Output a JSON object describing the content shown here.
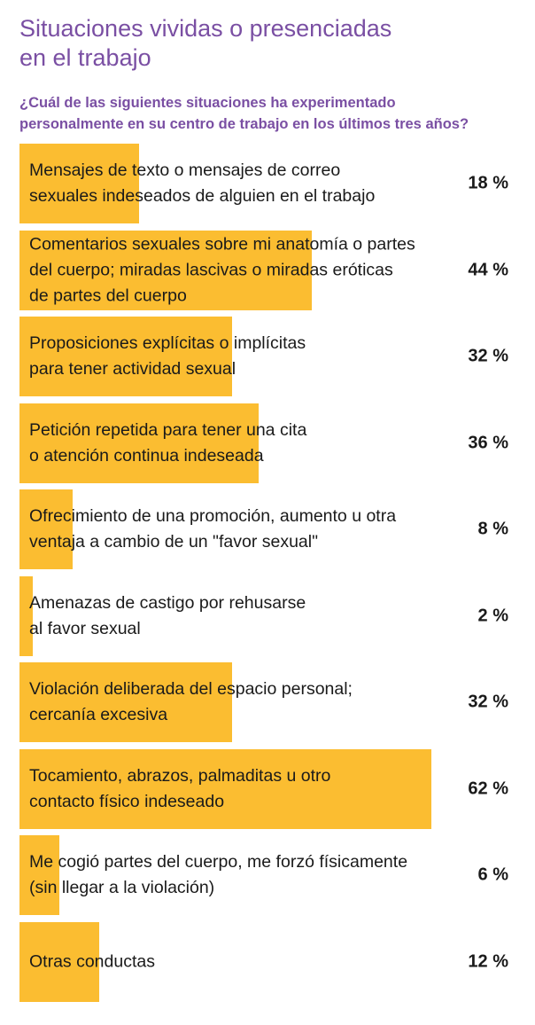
{
  "header": {
    "title": "Situaciones vividas o presenciadas\nen el trabajo",
    "subtitle": "¿Cuál de las siguientes situaciones ha experimentado\npersonalmente en su centro de trabajo en los últimos tres años?"
  },
  "colors": {
    "bar": "#fbbd31",
    "title": "#7a4fa3",
    "text": "#1a1a1a"
  },
  "chart_data": {
    "type": "bar",
    "orientation": "horizontal",
    "title": "Situaciones vividas o presenciadas en el trabajo",
    "subtitle": "¿Cuál de las siguientes situaciones ha experimentado personalmente en su centro de trabajo en los últimos tres años?",
    "unit": "%",
    "xlim": [
      0,
      100
    ],
    "categories": [
      "Mensajes de texto o mensajes de correo\nsexuales indeseados de alguien en el trabajo",
      "Comentarios sexuales sobre mi anatomía o partes\ndel cuerpo; miradas lascivas o miradas eróticas\nde partes del cuerpo",
      "Proposiciones explícitas o implícitas\npara tener actividad sexual",
      "Petición repetida para tener una cita\no atención continua indeseada",
      "Ofrecimiento de una promoción, aumento u otra\nventaja a cambio de un \"favor sexual\"",
      "Amenazas de castigo por rehusarse\nal favor sexual",
      "Violación deliberada del espacio personal;\ncercanía excesiva",
      "Tocamiento, abrazos, palmaditas u otro\ncontacto físico indeseado",
      "Me cogió partes del cuerpo, me forzó físicamente\n(sin llegar a la violación)",
      "Otras conductas"
    ],
    "values": [
      18,
      44,
      32,
      36,
      8,
      2,
      32,
      62,
      6,
      12
    ],
    "value_labels": [
      "18 %",
      "44 %",
      "32 %",
      "36 %",
      "8 %",
      "2 %",
      "32 %",
      "62 %",
      "6 %",
      "12 %"
    ]
  }
}
